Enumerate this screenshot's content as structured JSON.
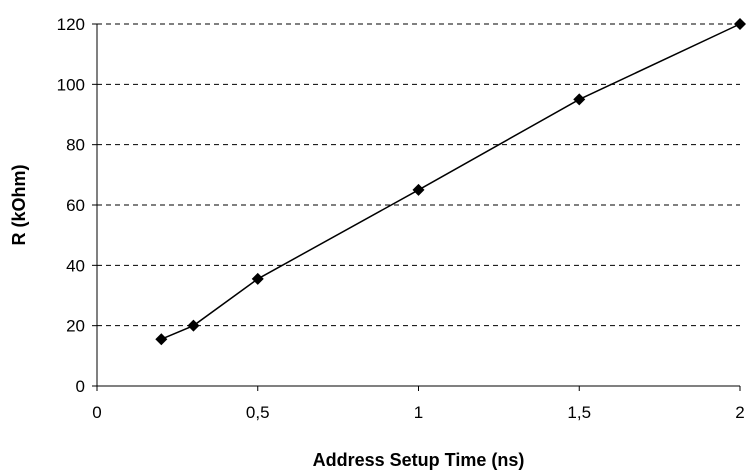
{
  "chart_data": {
    "type": "line",
    "title": "",
    "xlabel": "Address Setup Time (ns)",
    "ylabel": "R (kOhm)",
    "xlim": [
      0,
      2
    ],
    "ylim": [
      0,
      120
    ],
    "x_ticks": [
      "0",
      "0,5",
      "1",
      "1,5",
      "2"
    ],
    "x_tick_values": [
      0,
      0.5,
      1,
      1.5,
      2
    ],
    "y_ticks": [
      "0",
      "20",
      "40",
      "60",
      "80",
      "100",
      "120"
    ],
    "y_tick_values": [
      0,
      20,
      40,
      60,
      80,
      100,
      120
    ],
    "grid": "horizontal dashed",
    "legend": "none",
    "series": [
      {
        "marker": "diamond",
        "color": "#000000",
        "x": [
          0.2,
          0.3,
          0.5,
          1.0,
          1.5,
          2.0
        ],
        "y": [
          15.5,
          20,
          35.5,
          65,
          95,
          120
        ]
      }
    ]
  }
}
